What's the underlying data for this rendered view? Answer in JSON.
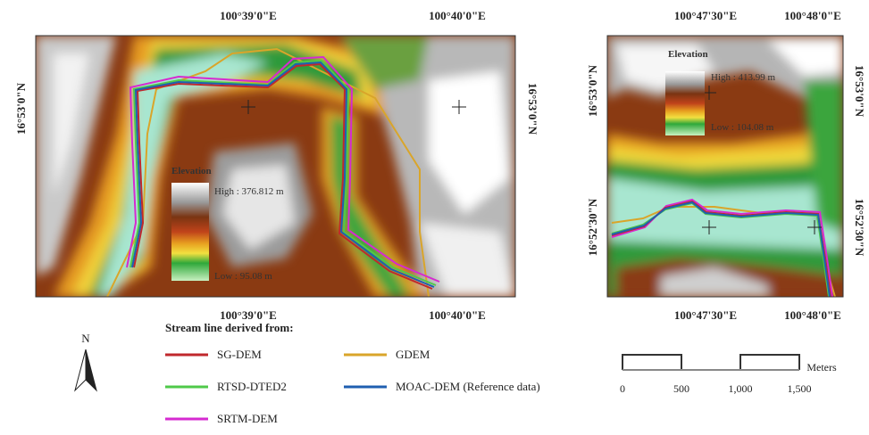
{
  "left_map": {
    "top_labels": [
      "100°39'0\"E",
      "100°40'0\"E"
    ],
    "bottom_labels": [
      "100°39'0\"E",
      "100°40'0\"E"
    ],
    "left_labels": [
      "16°53'0\"N"
    ],
    "right_labels": [
      "16°53'0\"N"
    ],
    "legend": {
      "title": "Elevation",
      "high": "High : 376.812 m",
      "low": "Low : 95.08 m"
    }
  },
  "right_map": {
    "top_labels": [
      "100°47'30\"E",
      "100°48'0\"E"
    ],
    "bottom_labels": [
      "100°47'30\"E",
      "100°48'0\"E"
    ],
    "left_labels": [
      "16°53'0\"N",
      "16°52'30\"N"
    ],
    "right_labels": [
      "16°53'0\"N",
      "16°52'30\"N"
    ],
    "legend": {
      "title": "Elevation",
      "high": "High : 413.99 m",
      "low": "Low : 104.08 m"
    }
  },
  "stream_legend": {
    "title": "Stream line derived from:",
    "items": [
      {
        "name": "SG-DEM",
        "color": "#c0282d"
      },
      {
        "name": "GDEM",
        "color": "#d9a52a"
      },
      {
        "name": "RTSD-DTED2",
        "color": "#4fc94a"
      },
      {
        "name": "MOAC-DEM (Reference data)",
        "color": "#1f5fb0"
      },
      {
        "name": "SRTM-DEM",
        "color": "#d62ad0"
      }
    ]
  },
  "north_arrow": {
    "label": "N"
  },
  "scale_bar": {
    "unit": "Meters",
    "labels": [
      "0",
      "500",
      "1,000",
      "1,500"
    ]
  }
}
